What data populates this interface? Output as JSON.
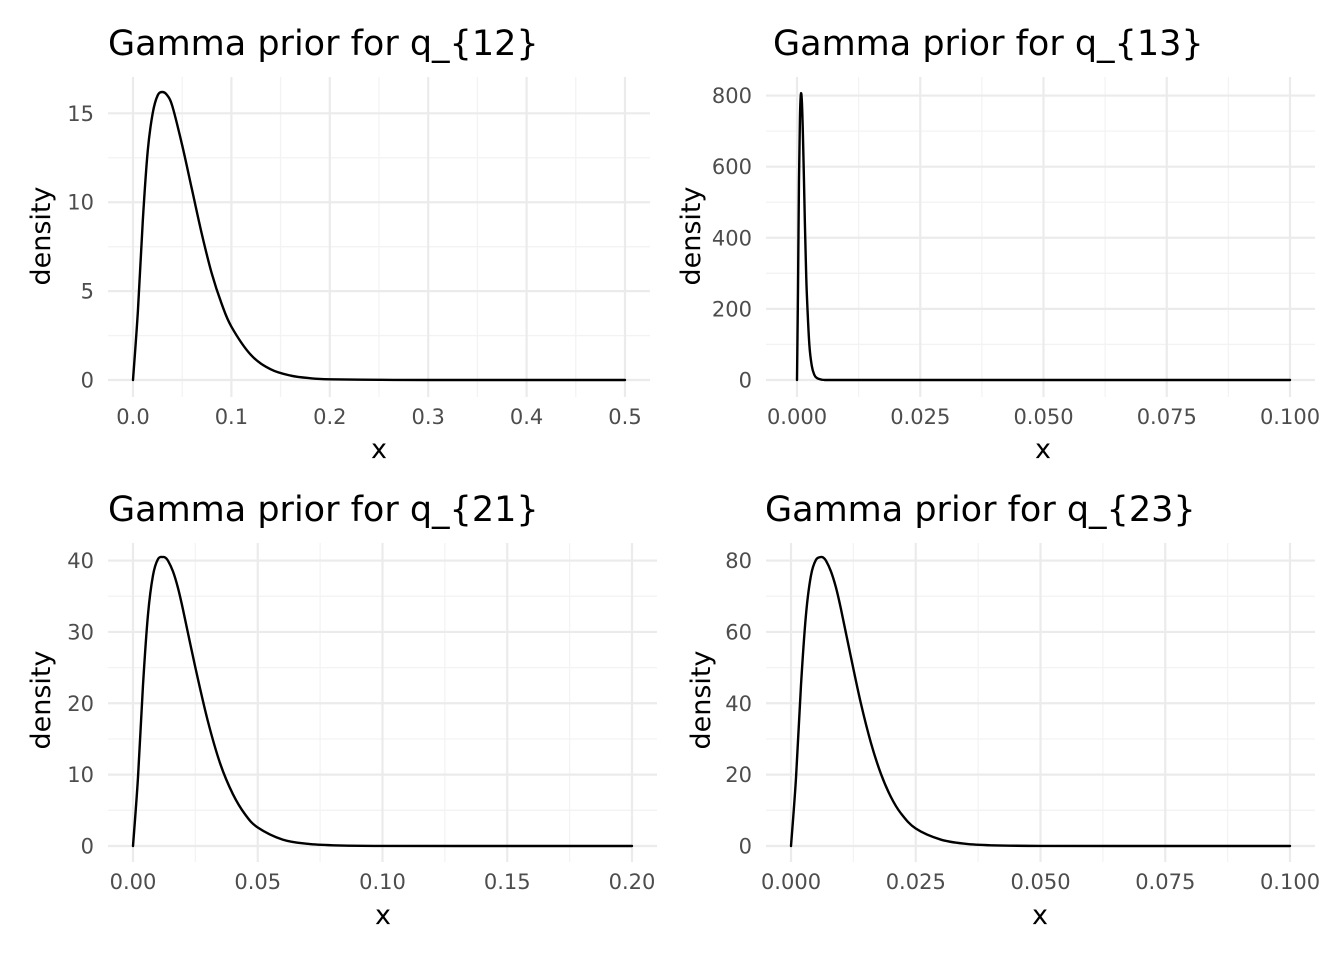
{
  "chart_data": [
    {
      "type": "line",
      "title": "Gamma prior for q_{12}",
      "xlabel": "x",
      "ylabel": "density",
      "xlim": [
        0,
        0.5
      ],
      "ylim": [
        0,
        16.2
      ],
      "grid": true,
      "x_ticks": [
        0,
        0.1,
        0.2,
        0.3,
        0.4,
        0.5
      ],
      "x_tick_labels": [
        "0.0",
        "0.1",
        "0.2",
        "0.3",
        "0.4",
        "0.5"
      ],
      "y_ticks": [
        0,
        5,
        10,
        15
      ],
      "y_tick_labels": [
        "0",
        "5",
        "10",
        "15"
      ],
      "series": [
        {
          "x": [
            0,
            0.005,
            0.01,
            0.015,
            0.02,
            0.025,
            0.03,
            0.035,
            0.04,
            0.05,
            0.06,
            0.07,
            0.08,
            0.09,
            0.1,
            0.12,
            0.14,
            0.16,
            0.18,
            0.2,
            0.25,
            0.3,
            0.4,
            0.5
          ],
          "y": [
            0,
            3.9,
            9.0,
            12.9,
            15.0,
            16.0,
            16.2,
            16.0,
            15.4,
            13.2,
            10.7,
            8.2,
            6.0,
            4.3,
            3.0,
            1.4,
            0.6,
            0.25,
            0.1,
            0.04,
            0.01,
            0,
            0,
            0
          ]
        }
      ]
    },
    {
      "type": "line",
      "title": "Gamma prior for q_{13}",
      "xlabel": "x",
      "ylabel": "density",
      "xlim": [
        0,
        0.1
      ],
      "ylim": [
        0,
        810
      ],
      "grid": true,
      "x_ticks": [
        0,
        0.025,
        0.05,
        0.075,
        0.1
      ],
      "x_tick_labels": [
        "0.000",
        "0.025",
        "0.050",
        "0.075",
        "0.100"
      ],
      "y_ticks": [
        0,
        200,
        400,
        600,
        800
      ],
      "y_tick_labels": [
        "0",
        "200",
        "400",
        "600",
        "800"
      ],
      "series": [
        {
          "x": [
            0,
            0.0002,
            0.0004,
            0.0006,
            0.0008,
            0.001,
            0.0012,
            0.0014,
            0.0016,
            0.0018,
            0.002,
            0.0025,
            0.003,
            0.0035,
            0.004,
            0.005,
            0.006,
            0.01,
            0.05,
            0.1
          ],
          "y": [
            0,
            250,
            560,
            740,
            805,
            780,
            690,
            570,
            440,
            330,
            240,
            100,
            40,
            15,
            6,
            1,
            0,
            0,
            0,
            0
          ]
        }
      ]
    },
    {
      "type": "line",
      "title": "Gamma prior for q_{21}",
      "xlabel": "x",
      "ylabel": "density",
      "xlim": [
        0,
        0.2
      ],
      "ylim": [
        0,
        40.5
      ],
      "grid": true,
      "x_ticks": [
        0,
        0.05,
        0.1,
        0.15,
        0.2
      ],
      "x_tick_labels": [
        "0.00",
        "0.05",
        "0.10",
        "0.15",
        "0.20"
      ],
      "y_ticks": [
        0,
        10,
        20,
        30,
        40
      ],
      "y_tick_labels": [
        "0",
        "10",
        "20",
        "30",
        "40"
      ],
      "series": [
        {
          "x": [
            0,
            0.002,
            0.004,
            0.006,
            0.008,
            0.01,
            0.012,
            0.013,
            0.014,
            0.016,
            0.018,
            0.02,
            0.025,
            0.03,
            0.035,
            0.04,
            0.045,
            0.05,
            0.06,
            0.07,
            0.08,
            0.1,
            0.15,
            0.2
          ],
          "y": [
            0,
            9.6,
            22.5,
            32.4,
            37.9,
            40.2,
            40.5,
            40.4,
            40.0,
            38.5,
            36.2,
            33.2,
            25.0,
            17.5,
            11.5,
            7.3,
            4.4,
            2.6,
            0.9,
            0.3,
            0.1,
            0.01,
            0,
            0
          ]
        }
      ]
    },
    {
      "type": "line",
      "title": "Gamma prior for q_{23}",
      "xlabel": "x",
      "ylabel": "density",
      "xlim": [
        0,
        0.1
      ],
      "ylim": [
        0,
        81
      ],
      "grid": true,
      "x_ticks": [
        0,
        0.025,
        0.05,
        0.075,
        0.1
      ],
      "x_tick_labels": [
        "0.000",
        "0.025",
        "0.050",
        "0.075",
        "0.100"
      ],
      "y_ticks": [
        0,
        20,
        40,
        60,
        80
      ],
      "y_tick_labels": [
        "0",
        "20",
        "40",
        "60",
        "80"
      ],
      "series": [
        {
          "x": [
            0,
            0.001,
            0.002,
            0.003,
            0.004,
            0.005,
            0.006,
            0.0065,
            0.007,
            0.008,
            0.009,
            0.01,
            0.012,
            0.014,
            0.016,
            0.018,
            0.02,
            0.022,
            0.025,
            0.03,
            0.035,
            0.04,
            0.05,
            0.075,
            0.1
          ],
          "y": [
            0,
            19.0,
            45.0,
            64.8,
            75.8,
            80.2,
            81.0,
            80.8,
            80.0,
            77.0,
            72.5,
            66.5,
            53.0,
            40.0,
            29.0,
            20.3,
            13.8,
            9.2,
            4.9,
            1.8,
            0.6,
            0.2,
            0.02,
            0,
            0
          ]
        }
      ]
    }
  ]
}
